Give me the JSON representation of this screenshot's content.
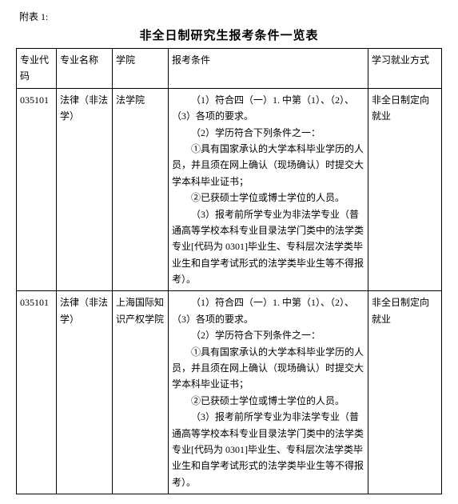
{
  "attach_label": "附表 1:",
  "title": "非全日制研究生报考条件一览表",
  "headers": {
    "code": "专业代码",
    "name": "专业名称",
    "college": "学院",
    "conditions": "报考条件",
    "mode": "学习就业方式"
  },
  "rows": [
    {
      "code": "035101",
      "name": "法律（非法学）",
      "college": "法学院",
      "mode": "非全日制定向就业",
      "cond": {
        "l1": "（1）符合四（一）1. 中第（1）、（2）、（3）各项的要求。",
        "l2": "（2）学历符合下列条件之一：",
        "l3": "①具有国家承认的大学本科毕业学历的人员，并且须在网上确认（现场确认）时提交大学本科毕业证书；",
        "l4": "②已获硕士学位或博士学位的人员。",
        "l5": "（3）报考前所学专业为非法学专业（普通高等学校本科专业目录法学门类中的法学类专业[代码为 0301]毕业生、专科层次法学类毕业生和自学考试形式的法学类毕业生等不得报考）。"
      }
    },
    {
      "code": "035101",
      "name": "法律（非法学）",
      "college": "上海国际知识产权学院",
      "mode": "非全日制定向就业",
      "cond": {
        "l1": "（1）符合四（一）1. 中第（1）、（2）、（3）各项的要求。",
        "l2": "（2）学历符合下列条件之一：",
        "l3": "①具有国家承认的大学本科毕业学历的人员，并且须在网上确认（现场确认）时提交大学本科毕业证书；",
        "l4": "②已获硕士学位或博士学位的人员。",
        "l5": "（3）报考前所学专业为非法学专业（普通高等学校本科专业目录法学门类中的法学类专业[代码为 0301]毕业生、专科层次法学类毕业生和自学考试形式的法学类毕业生等不得报考）。"
      }
    }
  ]
}
